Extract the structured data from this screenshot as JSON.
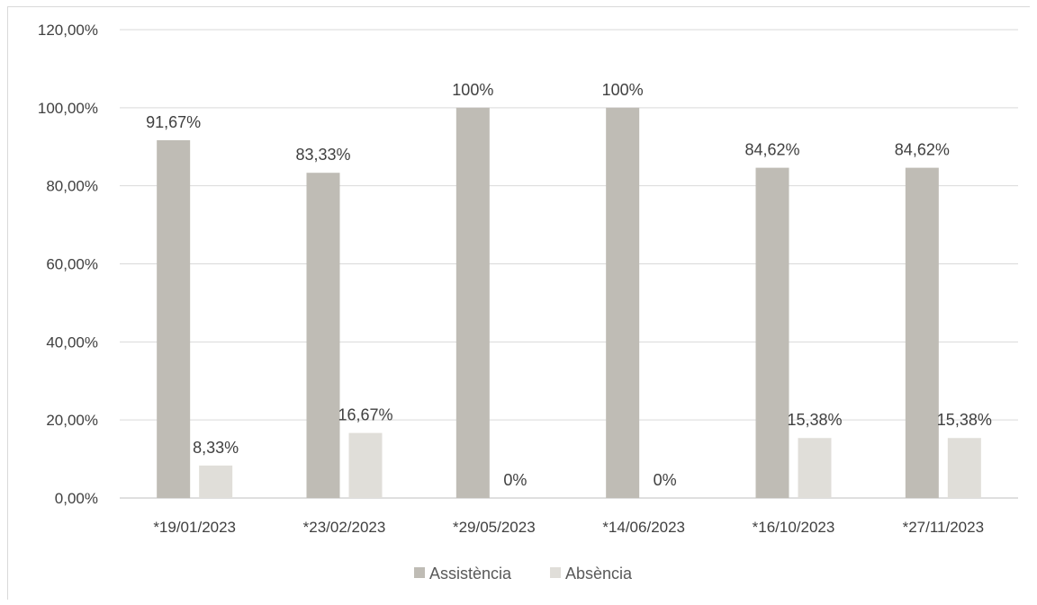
{
  "chart_data": {
    "type": "bar",
    "title": "",
    "xlabel": "",
    "ylabel": "",
    "categories": [
      "*19/01/2023",
      "*23/02/2023",
      "*29/05/2023",
      "*14/06/2023",
      "*16/10/2023",
      "*27/11/2023"
    ],
    "series": [
      {
        "name": "Assistència",
        "color": "#bfbcb5",
        "values": [
          91.67,
          83.33,
          100,
          100,
          84.62,
          84.62
        ],
        "labels": [
          "91,67%",
          "83,33%",
          "100%",
          "100%",
          "84,62%",
          "84,62%"
        ]
      },
      {
        "name": "Absència",
        "color": "#e0ded9",
        "values": [
          8.33,
          16.67,
          0,
          0,
          15.38,
          15.38
        ],
        "labels": [
          "8,33%",
          "16,67%",
          "0%",
          "0%",
          "15,38%",
          "15,38%"
        ]
      }
    ],
    "ylim": [
      0,
      120
    ],
    "yticks": [
      0,
      20,
      40,
      60,
      80,
      100,
      120
    ],
    "ytick_labels": [
      "0,00%",
      "20,00%",
      "40,00%",
      "60,00%",
      "80,00%",
      "100,00%",
      "120,00%"
    ],
    "grid": true,
    "legend": "bottom-center"
  }
}
